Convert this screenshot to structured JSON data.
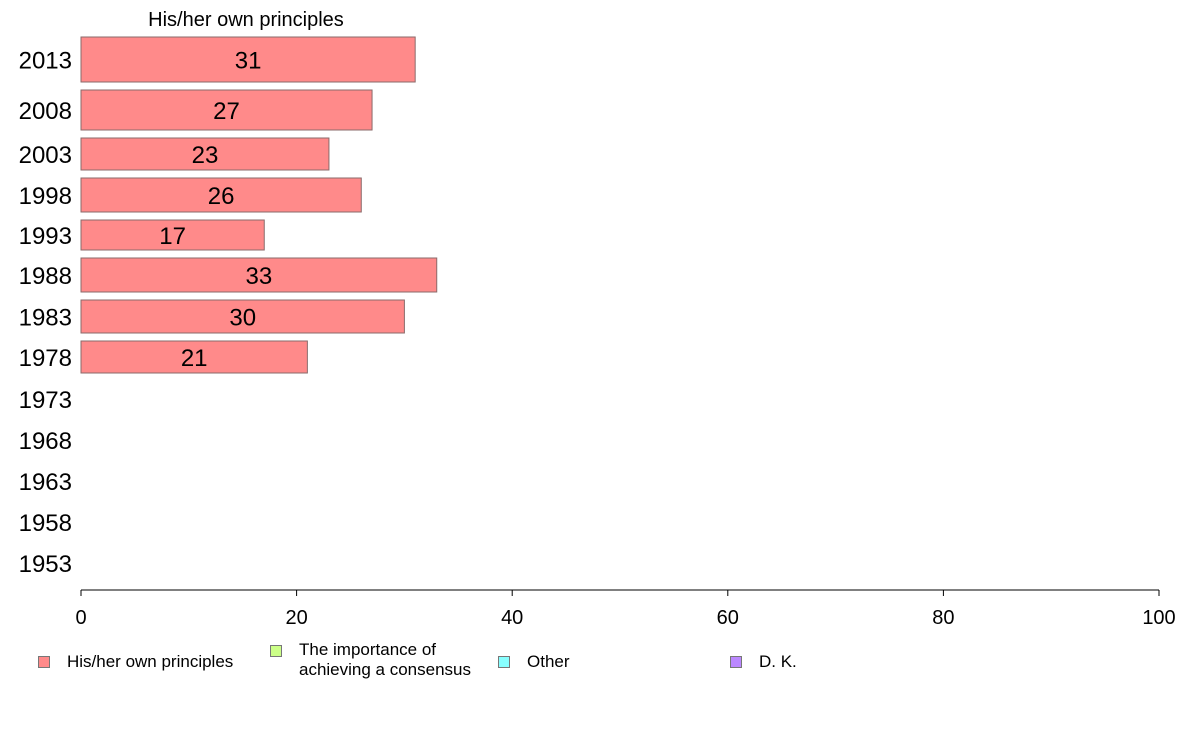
{
  "chart_data": {
    "type": "bar",
    "orientation": "horizontal",
    "title": "His/her own principles",
    "categories": [
      "2013",
      "2008",
      "2003",
      "1998",
      "1993",
      "1988",
      "1983",
      "1978",
      "1973",
      "1968",
      "1963",
      "1958",
      "1953"
    ],
    "series": [
      {
        "name": "His/her own principles",
        "color": "#ff8a8a",
        "values": [
          31,
          27,
          23,
          26,
          17,
          33,
          30,
          21,
          null,
          null,
          null,
          null,
          null
        ],
        "value_labels": [
          "31",
          "27",
          "23",
          "26",
          "17",
          "33",
          "30",
          "21",
          "",
          "",
          "",
          "",
          ""
        ]
      }
    ],
    "xlim": [
      0,
      100
    ],
    "x_ticks": [
      0,
      20,
      40,
      60,
      80,
      100
    ],
    "x_tick_labels": [
      "0",
      "20",
      "40",
      "60",
      "80",
      "100"
    ],
    "grid": false,
    "legend_position": "bottom"
  },
  "legend": [
    {
      "label": "His/her own principles",
      "color": "#ff8a8a"
    },
    {
      "label": "The importance of achieving a consensus",
      "color": "#ccff88"
    },
    {
      "label": "Other",
      "color": "#88ffff"
    },
    {
      "label": "D. K.",
      "color": "#bb88ff"
    }
  ]
}
